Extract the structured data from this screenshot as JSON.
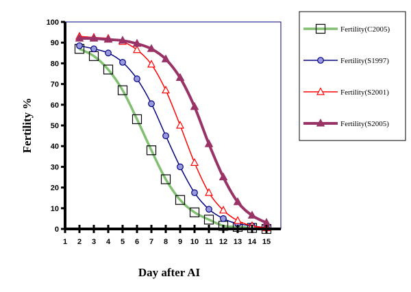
{
  "chart_data": {
    "type": "line",
    "xlabel": "Day after AI",
    "ylabel": "Fertility %",
    "xlim": [
      1,
      16
    ],
    "ylim": [
      0,
      100
    ],
    "xticks": [
      1,
      2,
      3,
      4,
      5,
      6,
      7,
      8,
      9,
      10,
      11,
      12,
      13,
      14,
      15
    ],
    "yticks": [
      0,
      10,
      20,
      30,
      40,
      50,
      60,
      70,
      80,
      90,
      100
    ],
    "grid": false,
    "legend": "right",
    "x": [
      2,
      3,
      4,
      5,
      6,
      7,
      8,
      9,
      10,
      11,
      12,
      13,
      14,
      15
    ],
    "series": [
      {
        "name": "Fertility(C2005)",
        "color": "#80c070",
        "marker": "square-icon",
        "values": [
          87,
          83.5,
          77,
          67,
          53,
          38,
          24,
          14,
          8,
          4.5,
          1.5,
          1,
          0.5,
          0
        ]
      },
      {
        "name": "Fertility(S1997)",
        "color": "#000080",
        "marker": "circle-icon",
        "values": [
          88.5,
          87,
          85,
          80.5,
          72.5,
          60.5,
          45,
          30,
          17.5,
          9.5,
          5,
          2.5,
          1.5,
          0.5
        ]
      },
      {
        "name": "Fertility(S2001)",
        "color": "#ff0000",
        "marker": "triangle-icon",
        "values": [
          93,
          92.5,
          92,
          90.5,
          86.5,
          79.5,
          67,
          50,
          32,
          17.5,
          9,
          4,
          1.5,
          0.5
        ]
      },
      {
        "name": "Fertility(S2005)",
        "color": "#993366",
        "marker": "filled-triangle-icon",
        "values": [
          92,
          92,
          91.5,
          91,
          89.5,
          87,
          82,
          73,
          59,
          41,
          25,
          13,
          6.5,
          3
        ]
      }
    ]
  }
}
